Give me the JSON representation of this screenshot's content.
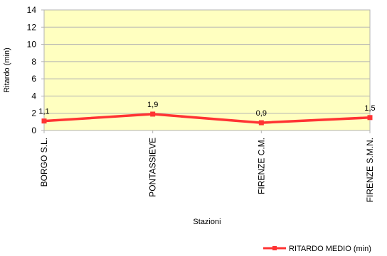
{
  "chart_data": {
    "type": "line",
    "title": "",
    "xlabel": "Stazioni",
    "ylabel": "Ritardo (min)",
    "categories": [
      "BORGO S.L.",
      "PONTASSIEVE",
      "FIRENZE C.M.",
      "FIRENZE S.M.N."
    ],
    "ylim": [
      0,
      14
    ],
    "yticks": [
      0,
      2,
      4,
      6,
      8,
      10,
      12,
      14
    ],
    "grid": true,
    "legend_position": "bottom-right",
    "plot_background": "#ffffc0",
    "series": [
      {
        "name": "RITARDO MEDIO (min)",
        "values": [
          1.1,
          1.9,
          0.9,
          1.5
        ],
        "labels": [
          "1,1",
          "1,9",
          "0,9",
          "1,5"
        ],
        "color": "#ff3333"
      }
    ]
  }
}
